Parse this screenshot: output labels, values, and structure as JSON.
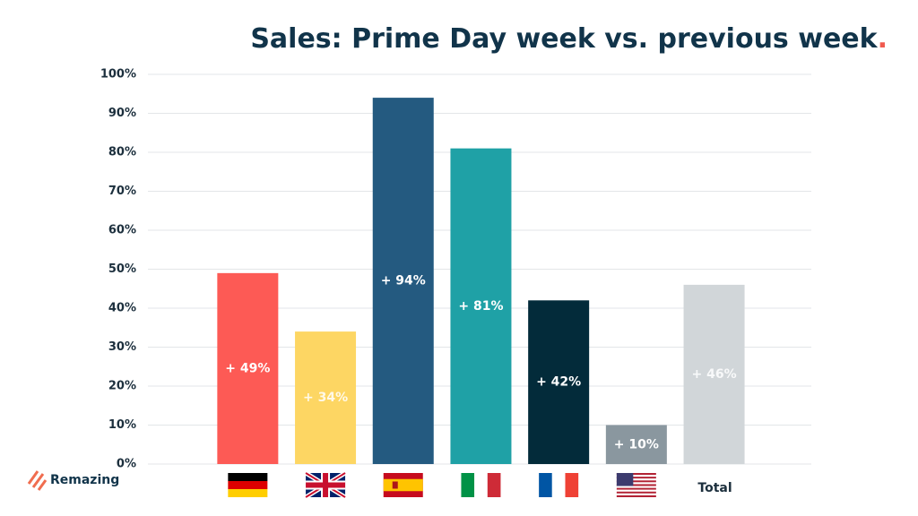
{
  "chart_data": {
    "type": "bar",
    "title": "Sales: Prime Day week vs. previous week.",
    "categories": [
      null,
      null,
      null,
      null,
      null,
      null,
      "Total"
    ],
    "values": [
      49,
      34,
      94,
      81,
      42,
      10,
      46
    ],
    "value_labels": [
      "+ 49%",
      "+ 34%",
      "+ 94%",
      "+ 81%",
      "+ 42%",
      "+ 10%",
      "+ 46%"
    ],
    "colors": [
      "#fd5a55",
      "#fdd663",
      "#245a80",
      "#1fa1a6",
      "#032b3a",
      "#8a979f",
      "#d1d6d9"
    ],
    "ylim": [
      0,
      100
    ],
    "yticks": [
      {
        "value": 0,
        "label": "0%"
      },
      {
        "value": 10,
        "label": "10%"
      },
      {
        "value": 20,
        "label": "20%"
      },
      {
        "value": 30,
        "label": "30%"
      },
      {
        "value": 40,
        "label": "40%"
      },
      {
        "value": 50,
        "label": "50%"
      },
      {
        "value": 60,
        "label": "60%"
      },
      {
        "value": 70,
        "label": "70%"
      },
      {
        "value": 80,
        "label": "80%"
      },
      {
        "value": 90,
        "label": "90%"
      },
      {
        "value": 100,
        "label": "100%"
      }
    ],
    "grid": true
  },
  "logo": "Remazing"
}
